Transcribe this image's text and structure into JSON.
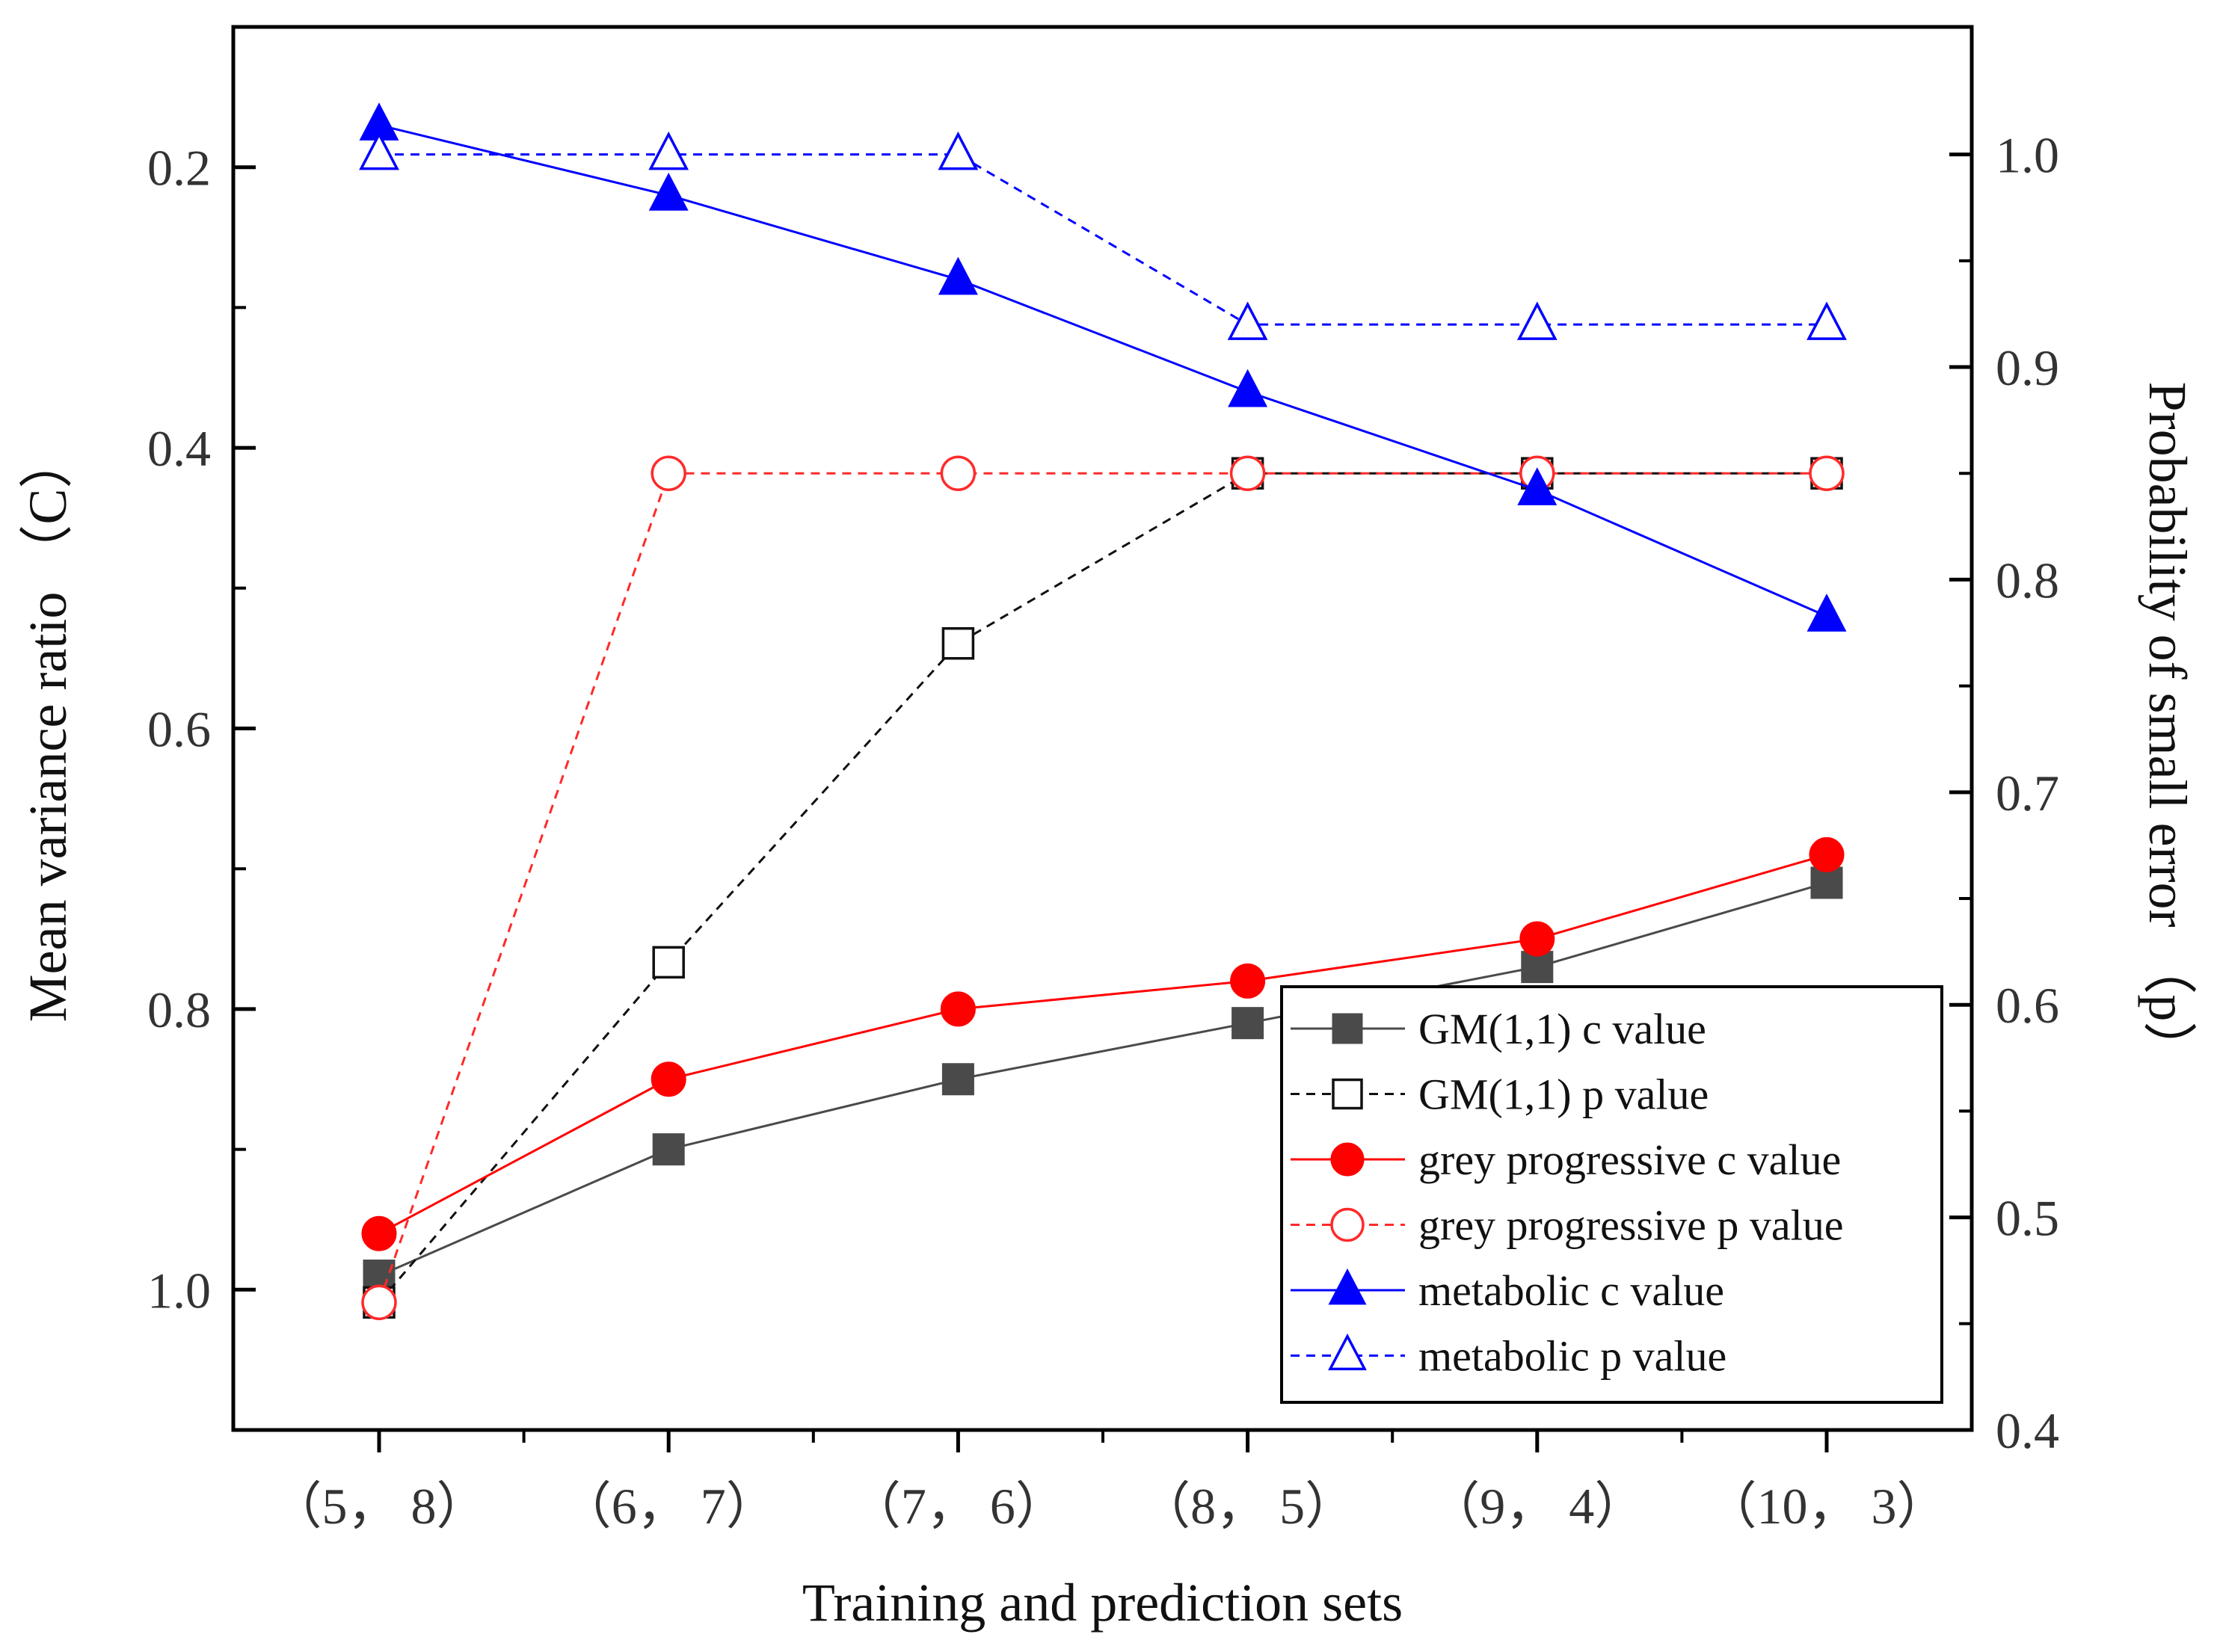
{
  "chart_data": {
    "type": "line",
    "xlabel": "Training and prediction sets",
    "ylabel_left": "Mean variance ratio （C）",
    "ylabel_right": "Probability of small error （p）",
    "categories": [
      "（5， 8）",
      "（6， 7）",
      "（7， 6）",
      "（8， 5）",
      "（9， 4）",
      "（10， 3）"
    ],
    "left_axis": {
      "min": 0.1,
      "max": 1.1,
      "inverted": true,
      "major_ticks": [
        0.2,
        0.4,
        0.6,
        0.8,
        1.0
      ],
      "minor_ticks": [
        0.3,
        0.5,
        0.7,
        0.9
      ],
      "tick_labels": [
        "0.2",
        "0.4",
        "0.6",
        "0.8",
        "1.0"
      ]
    },
    "right_axis": {
      "min": 0.4,
      "max": 1.06,
      "major_ticks": [
        0.4,
        0.5,
        0.6,
        0.7,
        0.8,
        0.9,
        1.0
      ],
      "minor_ticks": [
        0.45,
        0.55,
        0.65,
        0.75,
        0.85,
        0.95
      ],
      "tick_labels": [
        "0.4",
        "0.5",
        "0.6",
        "0.7",
        "0.8",
        "0.9",
        "1.0"
      ]
    },
    "series": [
      {
        "name": "GM(1,1) c value",
        "axis": "left",
        "values": [
          0.99,
          0.9,
          0.85,
          0.81,
          0.77,
          0.71
        ],
        "color": "#4a4a4a",
        "marker": "square",
        "filled": true,
        "dashed": false
      },
      {
        "name": "GM(1,1) p value",
        "axis": "right",
        "values": [
          0.46,
          0.62,
          0.77,
          0.85,
          0.85,
          0.85
        ],
        "color": "#111111",
        "marker": "square",
        "filled": false,
        "dashed": true
      },
      {
        "name": "grey progressive c value",
        "axis": "left",
        "values": [
          0.96,
          0.85,
          0.8,
          0.78,
          0.75,
          0.69
        ],
        "color": "#ff0000",
        "marker": "circle",
        "filled": true,
        "dashed": false
      },
      {
        "name": "grey progressive p value",
        "axis": "right",
        "values": [
          0.46,
          0.85,
          0.85,
          0.85,
          0.85,
          0.85
        ],
        "color": "#ff2a2a",
        "marker": "circle",
        "filled": false,
        "dashed": true
      },
      {
        "name": "metabolic c value",
        "axis": "left",
        "values": [
          0.17,
          0.22,
          0.28,
          0.36,
          0.43,
          0.52
        ],
        "color": "#0000ff",
        "marker": "triangle",
        "filled": true,
        "dashed": false
      },
      {
        "name": "metabolic p value",
        "axis": "right",
        "values": [
          1.0,
          1.0,
          1.0,
          0.92,
          0.92,
          0.92
        ],
        "color": "#0000ff",
        "marker": "triangle",
        "filled": false,
        "dashed": true
      }
    ],
    "legend_position": "bottom-right"
  }
}
